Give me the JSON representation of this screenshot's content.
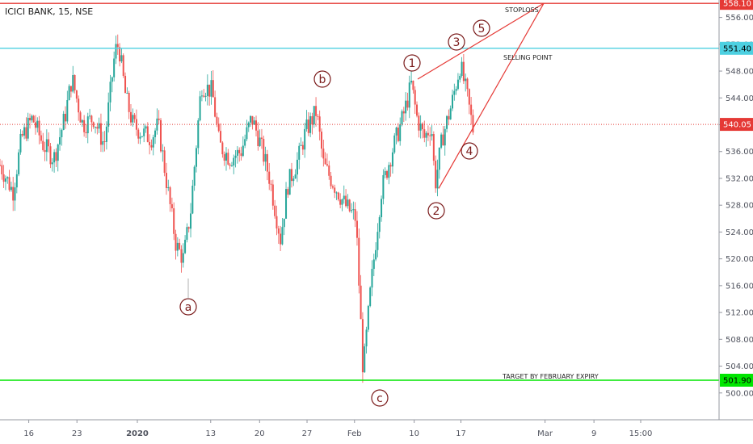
{
  "chart_data": {
    "type": "candlestick",
    "title": "ICICI BANK, 15, NSE",
    "ylim": [
      496.0,
      558.6
    ],
    "y_ticks": [
      500,
      504,
      508,
      512,
      516,
      520,
      524,
      528,
      532,
      536,
      540,
      544,
      548,
      552,
      556
    ],
    "y_tick_labels": [
      "500.00",
      "504.00",
      "508.00",
      "512.00",
      "516.00",
      "520.00",
      "524.00",
      "528.00",
      "532.00",
      "536.00",
      "540.00",
      "544.00",
      "548.00",
      "552.00",
      "556.00"
    ],
    "x_ticks": [
      "16",
      "23",
      "2020",
      "13",
      "20",
      "27",
      "Feb",
      "10",
      "17",
      "Mar",
      "9",
      "15:00"
    ],
    "x_tick_pos": [
      0.04,
      0.107,
      0.191,
      0.293,
      0.361,
      0.427,
      0.493,
      0.576,
      0.641,
      0.758,
      0.826,
      0.891
    ],
    "x_tick_bold": [
      false,
      false,
      true,
      false,
      false,
      false,
      false,
      false,
      false,
      false,
      false,
      false
    ],
    "hlines": [
      {
        "value": 558.1,
        "label": "558.10",
        "color": "#e53935",
        "style": "solid",
        "text_color": "#ffffff"
      },
      {
        "value": 551.4,
        "label": "551.40",
        "color": "#4dd0e1",
        "style": "solid",
        "text_color": "#000000"
      },
      {
        "value": 540.05,
        "label": "540.05",
        "color": "#e53935",
        "style": "dotted",
        "text_color": "#ffffff"
      },
      {
        "value": 501.9,
        "label": "501.90",
        "color": "#00e600",
        "style": "solid",
        "text_color": "#000000"
      }
    ],
    "annotations": [
      "STOPLOSS",
      "SELLING POINT",
      "TARGET BY FEBRUARY EXPIRY"
    ],
    "wave_labels": [
      "a",
      "b",
      "c",
      "1",
      "2",
      "3",
      "4",
      "5"
    ],
    "wave_points": [
      {
        "label": "1",
        "date": "early Feb",
        "value": 546.8
      },
      {
        "label": "2",
        "date": "10 Feb",
        "value": 530.5
      },
      {
        "label": "3",
        "date": "12 Feb",
        "value": 551.0
      },
      {
        "label": "4",
        "date": "13 Feb",
        "value": 537.8
      },
      {
        "label": "5",
        "date": "late Feb",
        "value": 558.1
      }
    ],
    "swing_points": [
      {
        "label": "a",
        "date": "early Jan",
        "value": 517.0
      },
      {
        "label": "b",
        "date": "27 Jan",
        "value": 545.0
      },
      {
        "label": "c",
        "date": "Feb",
        "value": 502.0
      }
    ],
    "colors": {
      "up": "#26a69a",
      "down": "#ef5350",
      "trend": "#e53935",
      "label": "#7a1a1a"
    },
    "price_path": [
      [
        0.0,
        534
      ],
      [
        0.018,
        530
      ],
      [
        0.03,
        538
      ],
      [
        0.045,
        541
      ],
      [
        0.06,
        537
      ],
      [
        0.075,
        535
      ],
      [
        0.09,
        541
      ],
      [
        0.1,
        547
      ],
      [
        0.115,
        540
      ],
      [
        0.13,
        541
      ],
      [
        0.145,
        537
      ],
      [
        0.16,
        551
      ],
      [
        0.165,
        552
      ],
      [
        0.175,
        544
      ],
      [
        0.185,
        540
      ],
      [
        0.195,
        539
      ],
      [
        0.21,
        538
      ],
      [
        0.22,
        540
      ],
      [
        0.235,
        529
      ],
      [
        0.245,
        522
      ],
      [
        0.255,
        520
      ],
      [
        0.265,
        527
      ],
      [
        0.28,
        546
      ],
      [
        0.295,
        545
      ],
      [
        0.305,
        537
      ],
      [
        0.32,
        535
      ],
      [
        0.335,
        536
      ],
      [
        0.35,
        541
      ],
      [
        0.36,
        538
      ],
      [
        0.375,
        532
      ],
      [
        0.39,
        523
      ],
      [
        0.4,
        531
      ],
      [
        0.415,
        535
      ],
      [
        0.425,
        539
      ],
      [
        0.44,
        542
      ],
      [
        0.45,
        534
      ],
      [
        0.465,
        531
      ],
      [
        0.48,
        528
      ],
      [
        0.495,
        526
      ],
      [
        0.505,
        503
      ],
      [
        0.515,
        515
      ],
      [
        0.53,
        530
      ],
      [
        0.545,
        536
      ],
      [
        0.56,
        541
      ],
      [
        0.572,
        546
      ],
      [
        0.58,
        541
      ],
      [
        0.59,
        538
      ],
      [
        0.6,
        540
      ],
      [
        0.605,
        531
      ],
      [
        0.615,
        538
      ],
      [
        0.628,
        543
      ],
      [
        0.64,
        549
      ],
      [
        0.65,
        544
      ],
      [
        0.66,
        538
      ]
    ]
  }
}
